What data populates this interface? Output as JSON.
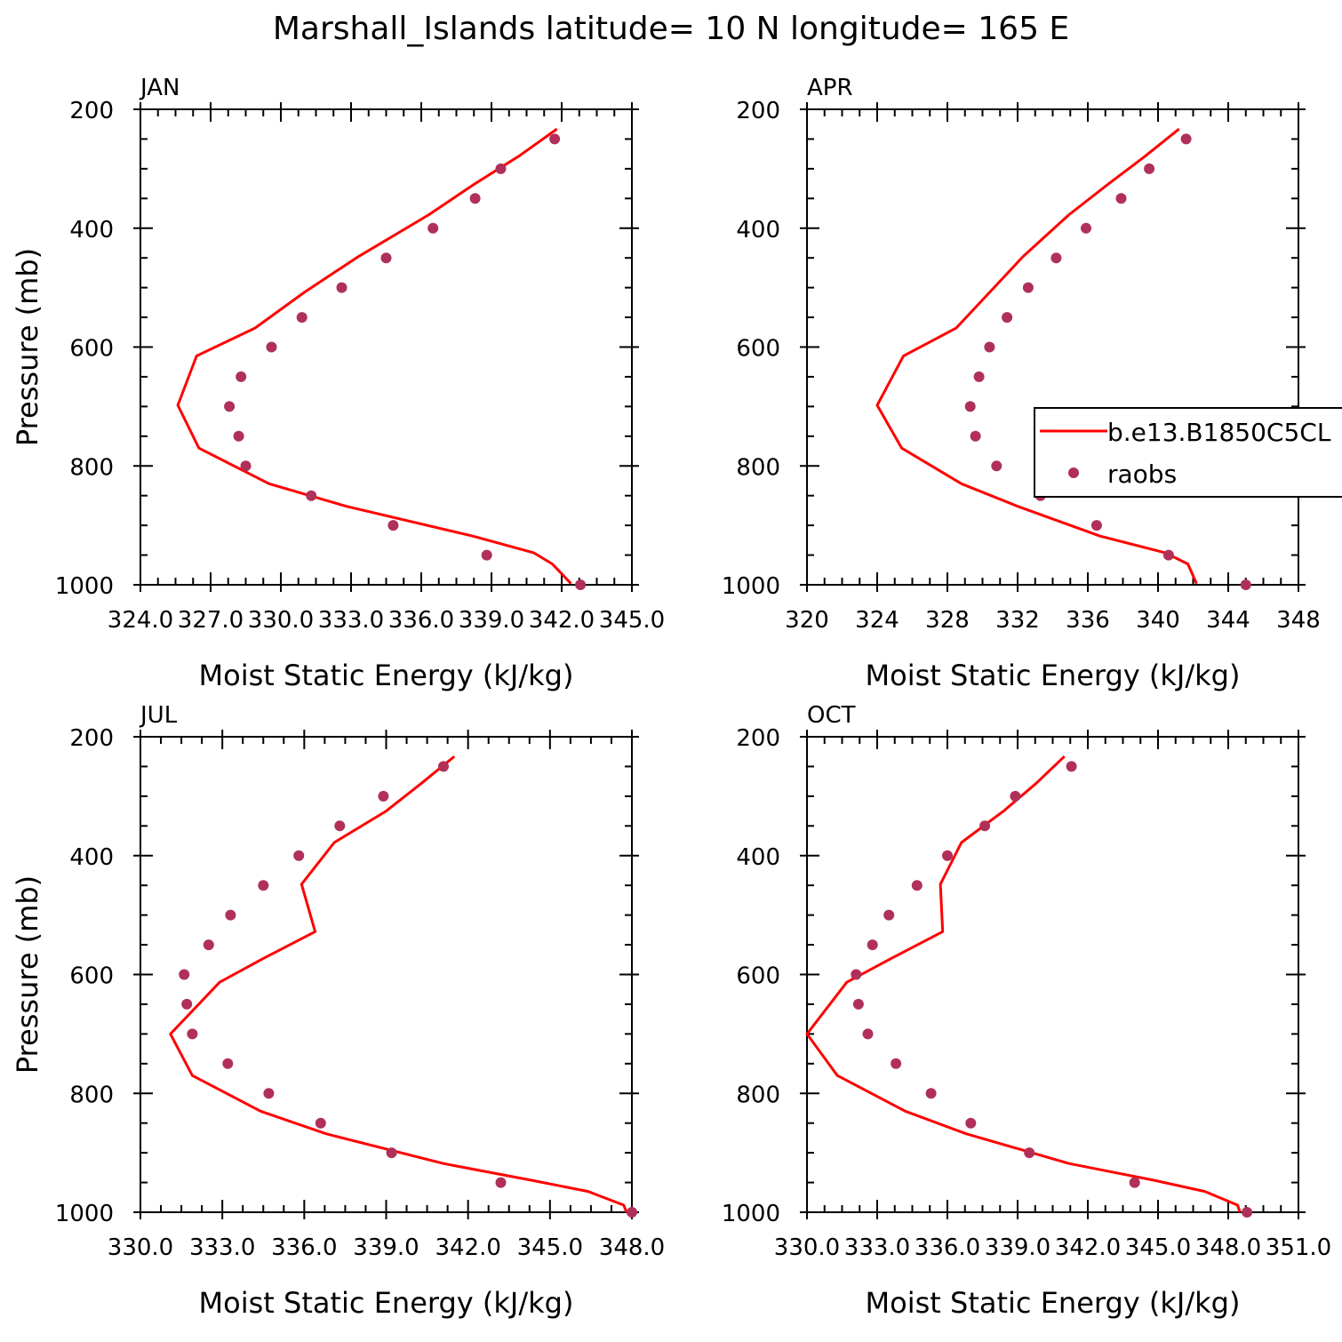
{
  "figure_title": "Marshall_Islands  latitude= 10 N longitude= 165 E",
  "colors": {
    "model_line": "#ff0000",
    "raobs_marker": "#b0305a"
  },
  "legend": {
    "placement": "panel APR, right side, overflowing figure edge",
    "entries": [
      {
        "label": "b.e13.B1850C5CL",
        "style": "line",
        "color": "#ff0000"
      },
      {
        "label": "raobs",
        "style": "marker",
        "color": "#b0305a"
      }
    ]
  },
  "chart_data": [
    {
      "type": "line",
      "panel_label": "JAN",
      "xlabel": "Moist Static Energy (kJ/kg)",
      "ylabel": "Pressure (mb)",
      "xlim": [
        324,
        345
      ],
      "ylim": [
        1000,
        200
      ],
      "xticks": [
        324,
        327,
        330,
        333,
        336,
        339,
        342,
        345
      ],
      "xtick_labels": [
        "324.0",
        "327.0",
        "330.0",
        "333.0",
        "336.0",
        "339.0",
        "342.0",
        "345.0"
      ],
      "yticks": [
        200,
        400,
        600,
        800,
        1000
      ],
      "ytick_labels": [
        "200",
        "400",
        "600",
        "800",
        "1000"
      ],
      "series": [
        {
          "name": "b.e13.B1850C5CL",
          "style": "line",
          "points": [
            [
              341.8,
              233
            ],
            [
              340.2,
              278
            ],
            [
              338.3,
              325
            ],
            [
              336.3,
              378
            ],
            [
              333.3,
              448
            ],
            [
              331.0,
              508
            ],
            [
              328.9,
              568
            ],
            [
              326.4,
              615
            ],
            [
              325.6,
              698
            ],
            [
              326.5,
              770
            ],
            [
              329.5,
              830
            ],
            [
              332.8,
              868
            ],
            [
              338.2,
              918
            ],
            [
              340.8,
              946
            ],
            [
              341.6,
              965
            ],
            [
              342.4,
              998
            ]
          ]
        },
        {
          "name": "raobs",
          "style": "marker",
          "points": [
            [
              341.7,
              250
            ],
            [
              339.4,
              300
            ],
            [
              338.3,
              350
            ],
            [
              336.5,
              400
            ],
            [
              334.5,
              450
            ],
            [
              332.6,
              500
            ],
            [
              330.9,
              550
            ],
            [
              329.6,
              600
            ],
            [
              328.3,
              650
            ],
            [
              327.8,
              700
            ],
            [
              328.2,
              750
            ],
            [
              328.5,
              800
            ],
            [
              331.3,
              850
            ],
            [
              334.8,
              900
            ],
            [
              338.8,
              950
            ],
            [
              342.8,
              1000
            ]
          ]
        }
      ]
    },
    {
      "type": "line",
      "panel_label": "APR",
      "xlabel": "Moist Static Energy (kJ/kg)",
      "ylabel": "",
      "xlim": [
        320,
        348
      ],
      "ylim": [
        1000,
        200
      ],
      "xticks": [
        320,
        324,
        328,
        332,
        336,
        340,
        344,
        348
      ],
      "xtick_labels": [
        "320",
        "324",
        "328",
        "332",
        "336",
        "340",
        "344",
        "348"
      ],
      "yticks": [
        200,
        400,
        600,
        800,
        1000
      ],
      "ytick_labels": [
        "200",
        "400",
        "600",
        "800",
        "1000"
      ],
      "series": [
        {
          "name": "b.e13.B1850C5CL",
          "style": "line",
          "points": [
            [
              341.2,
              233
            ],
            [
              339.3,
              278
            ],
            [
              337.2,
              325
            ],
            [
              334.9,
              378
            ],
            [
              332.3,
              448
            ],
            [
              330.4,
              508
            ],
            [
              328.5,
              568
            ],
            [
              325.5,
              615
            ],
            [
              324.0,
              698
            ],
            [
              325.4,
              770
            ],
            [
              328.8,
              830
            ],
            [
              332.0,
              868
            ],
            [
              336.7,
              918
            ],
            [
              340.4,
              946
            ],
            [
              341.7,
              965
            ],
            [
              342.2,
              998
            ]
          ]
        },
        {
          "name": "raobs",
          "style": "marker",
          "points": [
            [
              341.6,
              250
            ],
            [
              339.5,
              300
            ],
            [
              337.9,
              350
            ],
            [
              335.9,
              400
            ],
            [
              334.2,
              450
            ],
            [
              332.6,
              500
            ],
            [
              331.4,
              550
            ],
            [
              330.4,
              600
            ],
            [
              329.8,
              650
            ],
            [
              329.3,
              700
            ],
            [
              329.6,
              750
            ],
            [
              330.8,
              800
            ],
            [
              333.3,
              850
            ],
            [
              336.5,
              900
            ],
            [
              340.6,
              950
            ],
            [
              345.0,
              1000
            ]
          ]
        }
      ]
    },
    {
      "type": "line",
      "panel_label": "JUL",
      "xlabel": "Moist Static Energy (kJ/kg)",
      "ylabel": "Pressure (mb)",
      "xlim": [
        330,
        348
      ],
      "ylim": [
        1000,
        200
      ],
      "xticks": [
        330,
        333,
        336,
        339,
        342,
        345,
        348
      ],
      "xtick_labels": [
        "330.0",
        "333.0",
        "336.0",
        "339.0",
        "342.0",
        "345.0",
        "348.0"
      ],
      "yticks": [
        200,
        400,
        600,
        800,
        1000
      ],
      "ytick_labels": [
        "200",
        "400",
        "600",
        "800",
        "1000"
      ],
      "series": [
        {
          "name": "b.e13.B1850C5CL",
          "style": "line",
          "points": [
            [
              341.5,
              233
            ],
            [
              340.3,
              278
            ],
            [
              339.0,
              325
            ],
            [
              337.1,
              378
            ],
            [
              335.9,
              448
            ],
            [
              336.4,
              528
            ],
            [
              334.5,
              573
            ],
            [
              332.9,
              613
            ],
            [
              331.1,
              700
            ],
            [
              331.9,
              770
            ],
            [
              334.4,
              830
            ],
            [
              336.8,
              868
            ],
            [
              341.1,
              918
            ],
            [
              344.3,
              946
            ],
            [
              346.4,
              965
            ],
            [
              347.7,
              988
            ],
            [
              347.8,
              1000
            ]
          ]
        },
        {
          "name": "raobs",
          "style": "marker",
          "points": [
            [
              341.1,
              250
            ],
            [
              338.9,
              300
            ],
            [
              337.3,
              350
            ],
            [
              335.8,
              400
            ],
            [
              334.5,
              450
            ],
            [
              333.3,
              500
            ],
            [
              332.5,
              550
            ],
            [
              331.6,
              600
            ],
            [
              331.7,
              650
            ],
            [
              331.9,
              700
            ],
            [
              333.2,
              750
            ],
            [
              334.7,
              800
            ],
            [
              336.6,
              850
            ],
            [
              339.2,
              900
            ],
            [
              343.2,
              950
            ],
            [
              348.0,
              1000
            ]
          ]
        }
      ]
    },
    {
      "type": "line",
      "panel_label": "OCT",
      "xlabel": "Moist Static Energy (kJ/kg)",
      "ylabel": "",
      "xlim": [
        330,
        351
      ],
      "ylim": [
        1000,
        200
      ],
      "xticks": [
        330,
        333,
        336,
        339,
        342,
        345,
        348,
        351
      ],
      "xtick_labels": [
        "330.0",
        "333.0",
        "336.0",
        "339.0",
        "342.0",
        "345.0",
        "348.0",
        "351.0"
      ],
      "yticks": [
        200,
        400,
        600,
        800,
        1000
      ],
      "ytick_labels": [
        "200",
        "400",
        "600",
        "800",
        "1000"
      ],
      "series": [
        {
          "name": "b.e13.B1850C5CL",
          "style": "line",
          "points": [
            [
              341.0,
              233
            ],
            [
              339.8,
              278
            ],
            [
              338.4,
              325
            ],
            [
              336.6,
              378
            ],
            [
              335.7,
              448
            ],
            [
              335.8,
              528
            ],
            [
              333.6,
              573
            ],
            [
              331.7,
              613
            ],
            [
              330.0,
              700
            ],
            [
              331.3,
              770
            ],
            [
              334.2,
              830
            ],
            [
              336.8,
              868
            ],
            [
              341.2,
              918
            ],
            [
              344.8,
              946
            ],
            [
              347.0,
              965
            ],
            [
              348.4,
              988
            ],
            [
              348.5,
              1000
            ]
          ]
        },
        {
          "name": "raobs",
          "style": "marker",
          "points": [
            [
              341.3,
              250
            ],
            [
              338.9,
              300
            ],
            [
              337.6,
              350
            ],
            [
              336.0,
              400
            ],
            [
              334.7,
              450
            ],
            [
              333.5,
              500
            ],
            [
              332.8,
              550
            ],
            [
              332.1,
              600
            ],
            [
              332.2,
              650
            ],
            [
              332.6,
              700
            ],
            [
              333.8,
              750
            ],
            [
              335.3,
              800
            ],
            [
              337.0,
              850
            ],
            [
              339.5,
              900
            ],
            [
              344.0,
              950
            ],
            [
              348.8,
              1000
            ]
          ]
        }
      ]
    }
  ]
}
